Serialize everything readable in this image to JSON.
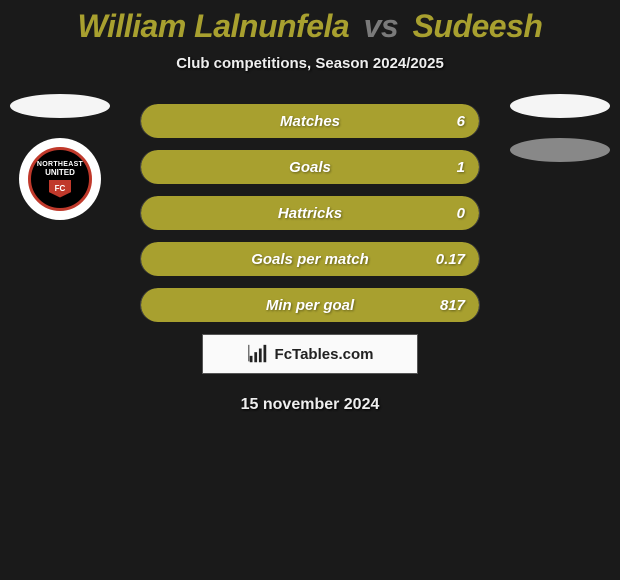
{
  "title": {
    "player1": "William Lalnunfela",
    "vs": "vs",
    "player2": "Sudeesh",
    "p1_color": "#a8a02f",
    "p2_color": "#a8a02f",
    "vs_color": "#7a7a7a",
    "fontsize": 32
  },
  "subtitle": "Club competitions, Season 2024/2025",
  "background_color": "#1a1a1a",
  "stat_bar": {
    "fill_color": "#a8a02f",
    "height": 34,
    "radius": 17,
    "label_fontsize": 15,
    "label_color": "#ffffff"
  },
  "stats": [
    {
      "label": "Matches",
      "right_value": "6",
      "fill_pct": 100
    },
    {
      "label": "Goals",
      "right_value": "1",
      "fill_pct": 100
    },
    {
      "label": "Hattricks",
      "right_value": "0",
      "fill_pct": 100
    },
    {
      "label": "Goals per match",
      "right_value": "0.17",
      "fill_pct": 100
    },
    {
      "label": "Min per goal",
      "right_value": "817",
      "fill_pct": 100
    }
  ],
  "left_side": {
    "ellipse_color": "#f5f5f5",
    "club": {
      "line1": "NORTHEAST",
      "line2": "UNITED",
      "shield_text": "FC",
      "border_color": "#c0392b",
      "bg_color": "#000000",
      "outer_bg": "#ffffff"
    }
  },
  "right_side": {
    "ellipse1_color": "#f5f5f5",
    "ellipse2_color": "#888888"
  },
  "watermark": {
    "text": "FcTables.com",
    "bg": "#fafafa",
    "border": "#555555"
  },
  "date": "15 november 2024"
}
